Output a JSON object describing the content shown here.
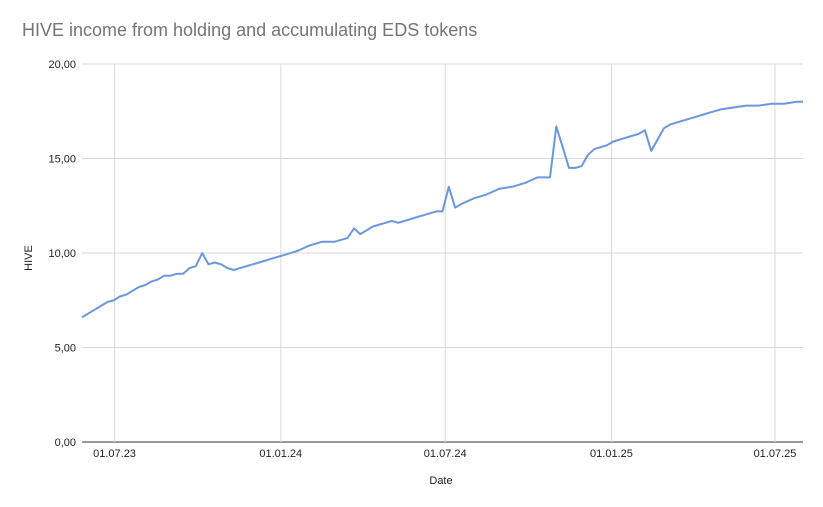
{
  "chart_data": {
    "type": "line",
    "title": "HIVE income from holding and accumulating EDS tokens",
    "xlabel": "Date",
    "ylabel": "HIVE",
    "ylim": [
      0,
      20
    ],
    "xlim": [
      "2023-05-26",
      "2025-08-01"
    ],
    "y_ticks": [
      "0,00",
      "5,00",
      "10,00",
      "15,00",
      "20,00"
    ],
    "x_ticks": [
      {
        "date": "2023-07-01",
        "label": "01.07.23"
      },
      {
        "date": "2024-01-01",
        "label": "01.01.24"
      },
      {
        "date": "2024-07-01",
        "label": "01.07.24"
      },
      {
        "date": "2025-01-01",
        "label": "01.01.25"
      },
      {
        "date": "2025-07-01",
        "label": "01.07.25"
      }
    ],
    "grid": true,
    "legend": "none",
    "line_color": "#6a97df",
    "series": [
      {
        "x": [
          "2023-05-26",
          "2023-06-02",
          "2023-06-09",
          "2023-06-16",
          "2023-06-23",
          "2023-06-30",
          "2023-07-07",
          "2023-07-14",
          "2023-07-21",
          "2023-07-28",
          "2023-08-04",
          "2023-08-11",
          "2023-08-18",
          "2023-08-25",
          "2023-09-01",
          "2023-09-08",
          "2023-09-15",
          "2023-09-22",
          "2023-09-29",
          "2023-10-06",
          "2023-10-13",
          "2023-10-20",
          "2023-10-27",
          "2023-11-03",
          "2023-11-10",
          "2023-11-17",
          "2023-11-24",
          "2023-12-01",
          "2023-12-08",
          "2023-12-22",
          "2024-01-05",
          "2024-01-19",
          "2024-02-02",
          "2024-02-16",
          "2024-03-01",
          "2024-03-15",
          "2024-03-22",
          "2024-03-29",
          "2024-04-12",
          "2024-04-26",
          "2024-05-03",
          "2024-05-10",
          "2024-05-24",
          "2024-06-07",
          "2024-06-14",
          "2024-06-21",
          "2024-06-28",
          "2024-07-05",
          "2024-07-12",
          "2024-07-19",
          "2024-08-02",
          "2024-08-16",
          "2024-08-30",
          "2024-09-13",
          "2024-09-27",
          "2024-10-11",
          "2024-10-25",
          "2024-11-01",
          "2024-11-08",
          "2024-11-15",
          "2024-11-22",
          "2024-11-29",
          "2024-12-06",
          "2024-12-13",
          "2024-12-27",
          "2025-01-03",
          "2025-01-17",
          "2025-01-31",
          "2025-02-07",
          "2025-02-14",
          "2025-02-28",
          "2025-03-07",
          "2025-03-14",
          "2025-03-21",
          "2025-03-28",
          "2025-04-04",
          "2025-04-11",
          "2025-04-18",
          "2025-05-02",
          "2025-05-16",
          "2025-05-30",
          "2025-06-06",
          "2025-06-13",
          "2025-06-27",
          "2025-07-11",
          "2025-07-25",
          "2025-08-01"
        ],
        "values": [
          6.6,
          6.8,
          7.0,
          7.2,
          7.4,
          7.5,
          7.7,
          7.8,
          8.0,
          8.2,
          8.3,
          8.5,
          8.6,
          8.8,
          8.8,
          8.9,
          8.9,
          9.2,
          9.3,
          10.0,
          9.4,
          9.5,
          9.4,
          9.2,
          9.1,
          9.2,
          9.3,
          9.4,
          9.5,
          9.7,
          9.9,
          10.1,
          10.4,
          10.6,
          10.6,
          10.8,
          11.3,
          11.0,
          11.4,
          11.6,
          11.7,
          11.6,
          11.8,
          12.0,
          12.1,
          12.2,
          12.2,
          13.5,
          12.4,
          12.6,
          12.9,
          13.1,
          13.4,
          13.5,
          13.7,
          14.0,
          14.0,
          16.7,
          15.6,
          14.5,
          14.5,
          14.6,
          15.2,
          15.5,
          15.7,
          15.9,
          16.1,
          16.3,
          16.5,
          15.4,
          16.6,
          16.8,
          16.9,
          17.0,
          17.1,
          17.2,
          17.3,
          17.4,
          17.6,
          17.7,
          17.8,
          17.8,
          17.8,
          17.9,
          17.9,
          18.0,
          18.0
        ]
      }
    ]
  }
}
